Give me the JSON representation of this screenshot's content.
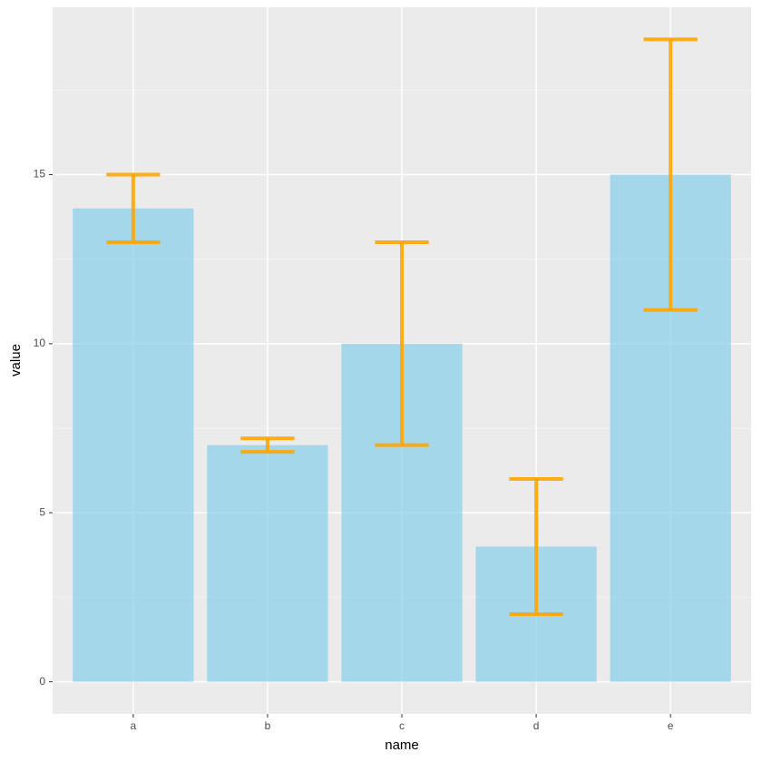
{
  "chart_data": {
    "type": "bar",
    "categories": [
      "a",
      "b",
      "c",
      "d",
      "e"
    ],
    "values": [
      14,
      7,
      10,
      4,
      15
    ],
    "errors": [
      1,
      0.2,
      3,
      2,
      4
    ],
    "color": "skyblue",
    "error_color": "orange",
    "x_label": "name",
    "y_label": "value",
    "ylim": [
      -0.95,
      19.95
    ],
    "yticks": [
      0,
      5,
      10,
      15
    ],
    "minor_yticks": [
      2.5,
      7.5,
      12.5,
      17.5
    ],
    "grid": true
  }
}
